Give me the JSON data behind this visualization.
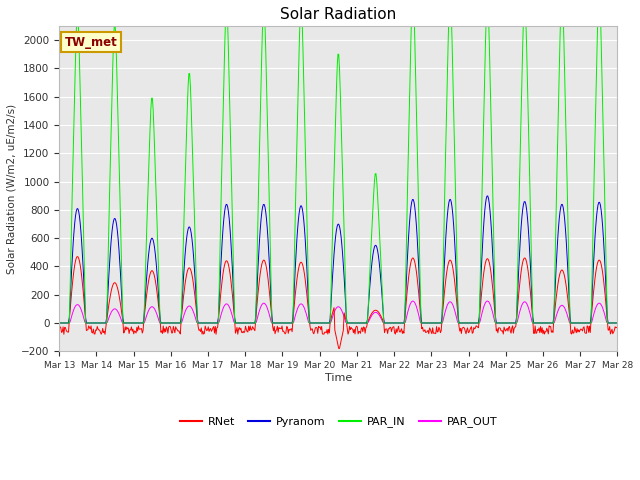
{
  "title": "Solar Radiation",
  "ylabel": "Solar Radiation (W/m2, uE/m2/s)",
  "xlabel": "Time",
  "ylim": [
    -200,
    2100
  ],
  "yticks": [
    -200,
    0,
    200,
    400,
    600,
    800,
    1000,
    1200,
    1400,
    1600,
    1800,
    2000
  ],
  "colors": {
    "RNet": "#ff0000",
    "Pyranom": "#0000dd",
    "PAR_IN": "#00ee00",
    "PAR_OUT": "#ff00ff"
  },
  "fig_bg_color": "#ffffff",
  "plot_bg_color": "#e8e8e8",
  "grid_color": "#ffffff",
  "legend_box_color": "#ffffcc",
  "legend_box_edge": "#cc9900",
  "station_label": "TW_met",
  "n_days": 15,
  "x_tick_labels": [
    "Mar 13",
    "Mar 14",
    "Mar 15",
    "Mar 16",
    "Mar 17",
    "Mar 18",
    "Mar 19",
    "Mar 20",
    "Mar 21",
    "Mar 22",
    "Mar 23",
    "Mar 24",
    "Mar 25",
    "Mar 26",
    "Mar 27",
    "Mar 28"
  ]
}
